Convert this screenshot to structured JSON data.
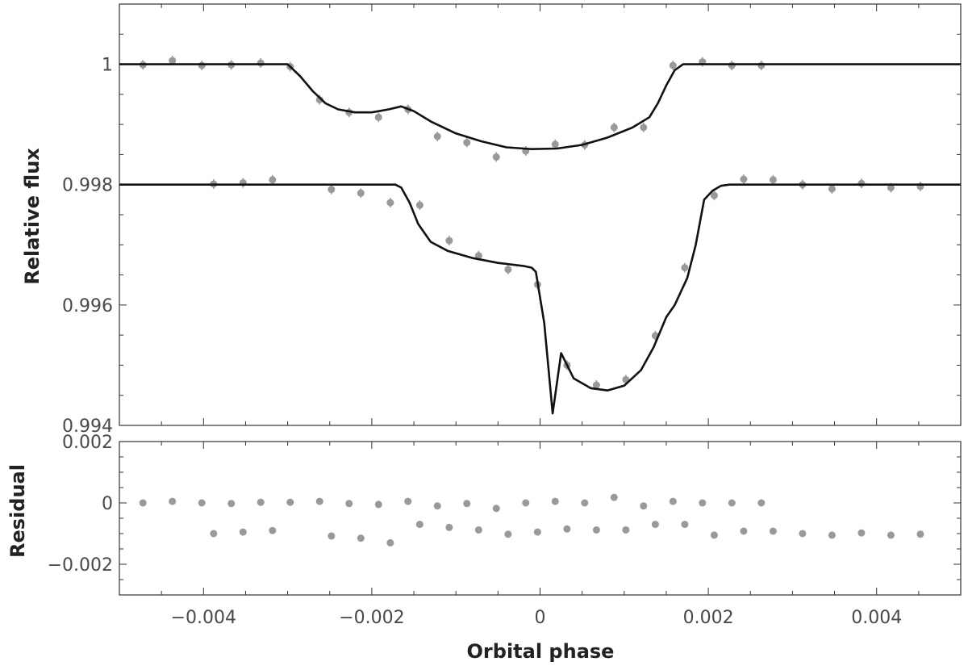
{
  "chart_data": [
    {
      "type": "scatter",
      "panel": "top",
      "title": "",
      "xlabel": "",
      "ylabel": "Relative flux",
      "xlim": [
        -0.005,
        0.005
      ],
      "ylim": [
        0.994,
        1.001
      ],
      "xticks": [
        -0.004,
        -0.002,
        0,
        0.002,
        0.004
      ],
      "yticks": [
        0.994,
        0.996,
        0.998,
        1
      ],
      "ytick_labels": [
        "0.994",
        "0.996",
        "0.998",
        "1"
      ],
      "grid": false,
      "colors": {
        "points": "#999999",
        "model": "#111111"
      },
      "series": [
        {
          "kind": "points",
          "x": [
            -0.00472,
            -0.00437,
            -0.00402,
            -0.00367,
            -0.00332,
            -0.00297,
            -0.00262,
            -0.00227,
            -0.00192,
            -0.00157,
            -0.00122,
            -0.00087,
            -0.00052,
            -0.00017,
            0.00018,
            0.00053,
            0.00088,
            0.00123,
            0.00158,
            0.00193,
            0.00228,
            0.00263
          ],
          "y": [
            0.99999,
            1.00006,
            0.99998,
            0.99999,
            1.00002,
            0.99996,
            0.99941,
            0.9992,
            0.99912,
            0.99925,
            0.9988,
            0.9987,
            0.99846,
            0.99856,
            0.99867,
            0.99866,
            0.99895,
            0.99895,
            0.99998,
            1.00004,
            0.99998,
            0.99998
          ]
        },
        {
          "kind": "model",
          "x": [
            -0.005,
            -0.003,
            -0.00285,
            -0.0027,
            -0.00255,
            -0.0024,
            -0.0022,
            -0.002,
            -0.0018,
            -0.00165,
            -0.0015,
            -0.0013,
            -0.001,
            -0.0007,
            -0.0004,
            -0.0001,
            0.0002,
            0.0005,
            0.0008,
            0.0011,
            0.0013,
            0.0014,
            0.0015,
            0.0016,
            0.0017,
            0.002,
            0.005
          ],
          "y": [
            1.0,
            1.0,
            0.9998,
            0.99955,
            0.99935,
            0.99925,
            0.9992,
            0.9992,
            0.99925,
            0.9993,
            0.99922,
            0.99905,
            0.99885,
            0.99872,
            0.99862,
            0.99859,
            0.9986,
            0.99866,
            0.99878,
            0.99895,
            0.99912,
            0.99935,
            0.99965,
            0.9999,
            1.0,
            1.0,
            1.0
          ]
        },
        {
          "kind": "points",
          "x": [
            -0.00388,
            -0.00353,
            -0.00318,
            -0.00248,
            -0.00213,
            -0.00178,
            -0.00143,
            -0.00108,
            -0.00073,
            -0.00038,
            -3e-05,
            0.00032,
            0.00067,
            0.00102,
            0.00137,
            0.00172,
            0.00207,
            0.00242,
            0.00277,
            0.00312,
            0.00347,
            0.00382,
            0.00417,
            0.00452
          ],
          "y": [
            0.99801,
            0.99803,
            0.99808,
            0.99792,
            0.99786,
            0.9977,
            0.99766,
            0.99707,
            0.99682,
            0.99659,
            0.99634,
            0.995,
            0.99467,
            0.99476,
            0.99549,
            0.99662,
            0.99782,
            0.99809,
            0.99808,
            0.998,
            0.99793,
            0.99802,
            0.99795,
            0.99797
          ]
        },
        {
          "kind": "model",
          "x": [
            -0.005,
            -0.00172,
            -0.00165,
            -0.00155,
            -0.00145,
            -0.0013,
            -0.0011,
            -0.0008,
            -0.0005,
            -0.0002,
            -0.0001,
            -5e-05,
            5e-05,
            0.00015,
            0.00025,
            0.0004,
            0.0006,
            0.0008,
            0.001,
            0.0012,
            0.00135,
            0.0015,
            0.0016,
            0.00175,
            0.00185,
            0.00195,
            0.00205,
            0.00215,
            0.00225,
            0.005
          ],
          "y": [
            0.998,
            0.998,
            0.99795,
            0.9977,
            0.99735,
            0.99705,
            0.9969,
            0.99678,
            0.9967,
            0.99665,
            0.99662,
            0.99655,
            0.9957,
            0.9942,
            0.9952,
            0.99478,
            0.99462,
            0.99458,
            0.99466,
            0.99492,
            0.9953,
            0.9958,
            0.996,
            0.99645,
            0.997,
            0.99775,
            0.9979,
            0.99798,
            0.998,
            0.998
          ]
        }
      ]
    },
    {
      "type": "scatter",
      "panel": "bottom",
      "title": "",
      "xlabel": "Orbital phase",
      "ylabel": "Residual",
      "xlim": [
        -0.005,
        0.005
      ],
      "ylim": [
        -0.003,
        0.002
      ],
      "xticks": [
        -0.004,
        -0.002,
        0,
        0.002,
        0.004
      ],
      "xtick_labels": [
        "−0.004",
        "−0.002",
        "0",
        "0.002",
        "0.004"
      ],
      "yticks": [
        -0.002,
        0,
        0.002
      ],
      "ytick_labels": [
        "−0.002",
        "0",
        "0.002"
      ],
      "grid": false,
      "colors": {
        "points": "#999999"
      },
      "series": [
        {
          "kind": "points",
          "x": [
            -0.00472,
            -0.00437,
            -0.00402,
            -0.00367,
            -0.00332,
            -0.00297,
            -0.00262,
            -0.00227,
            -0.00192,
            -0.00157,
            -0.00122,
            -0.00087,
            -0.00052,
            -0.00017,
            0.00018,
            0.00053,
            0.00088,
            0.00123,
            0.00158,
            0.00193,
            0.00228,
            0.00263
          ],
          "y": [
            0.0,
            5e-05,
            0.0,
            -2e-05,
            2e-05,
            2e-05,
            5e-05,
            -2e-05,
            -5e-05,
            5e-05,
            -0.0001,
            -2e-05,
            -0.00018,
            0.0,
            5e-05,
            0.0,
            0.00018,
            -0.0001,
            5e-05,
            0.0,
            0.0,
            0.0
          ]
        },
        {
          "kind": "points",
          "x": [
            -0.00388,
            -0.00353,
            -0.00318,
            -0.00248,
            -0.00213,
            -0.00178,
            -0.00143,
            -0.00108,
            -0.00073,
            -0.00038,
            -3e-05,
            0.00032,
            0.00067,
            0.00102,
            0.00137,
            0.00172,
            0.00207,
            0.00242,
            0.00277,
            0.00312,
            0.00347,
            0.00382,
            0.00417,
            0.00452
          ],
          "y": [
            -0.001,
            -0.00095,
            -0.0009,
            -0.00108,
            -0.00115,
            -0.0013,
            -0.0007,
            -0.0008,
            -0.00088,
            -0.00102,
            -0.00095,
            -0.00085,
            -0.00088,
            -0.00088,
            -0.0007,
            -0.0007,
            -0.00105,
            -0.00092,
            -0.00092,
            -0.001,
            -0.00105,
            -0.00098,
            -0.00105,
            -0.00102
          ]
        }
      ]
    }
  ]
}
